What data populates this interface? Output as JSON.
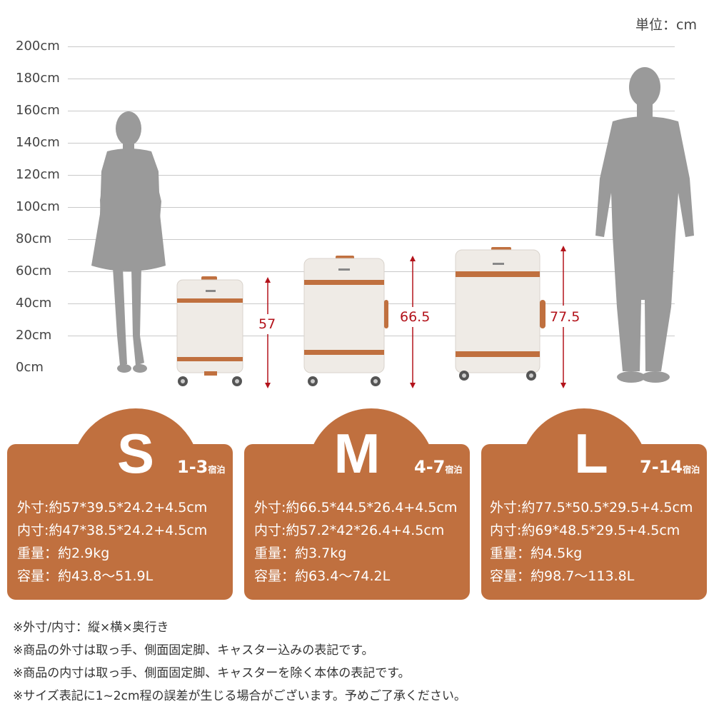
{
  "unit_label": "単位：cm",
  "scale_ticks": [
    "200cm",
    "180cm",
    "160cm",
    "140cm",
    "120cm",
    "100cm",
    "80cm",
    "60cm",
    "40cm",
    "20cm",
    "0cm"
  ],
  "suitcases": [
    {
      "height_label": "57",
      "height_value": 57
    },
    {
      "height_label": "66.5",
      "height_value": 66.5
    },
    {
      "height_label": "77.5",
      "height_value": 77.5
    }
  ],
  "colors": {
    "brown": "#c0703f",
    "accent_red": "#b3131b",
    "figure_gray": "#9a9a9a",
    "shell_white": "#efebe6"
  },
  "sizes": [
    {
      "letter": "S",
      "stay_num": "1-3",
      "stay_suffix": "宿泊",
      "specs": [
        "外寸:約57*39.5*24.2+4.5cm",
        "内寸:約47*38.5*24.2+4.5cm",
        "重量：約2.9kg",
        "容量：約43.8～51.9L"
      ]
    },
    {
      "letter": "M",
      "stay_num": "4-7",
      "stay_suffix": "宿泊",
      "specs": [
        "外寸:約66.5*44.5*26.4+4.5cm",
        "内寸:約57.2*42*26.4+4.5cm",
        "重量：約3.7kg",
        "容量：約63.4～74.2L"
      ]
    },
    {
      "letter": "L",
      "stay_num": "7-14",
      "stay_suffix": "宿泊",
      "specs": [
        "外寸:約77.5*50.5*29.5+4.5cm",
        "内寸:約69*48.5*29.5+4.5cm",
        "重量：約4.5kg",
        "容量：約98.7～113.8L"
      ]
    }
  ],
  "notes": [
    "※外寸/内寸：縦×横×奥行き",
    "※商品の外寸は取っ手、側面固定脚、キャスター込みの表記です。",
    "※商品の内寸は取っ手、側面固定脚、キャスターを除く本体の表記です。",
    "※サイズ表記に1~2cm程の誤差が生じる場合がございます。予めご了承ください。"
  ]
}
